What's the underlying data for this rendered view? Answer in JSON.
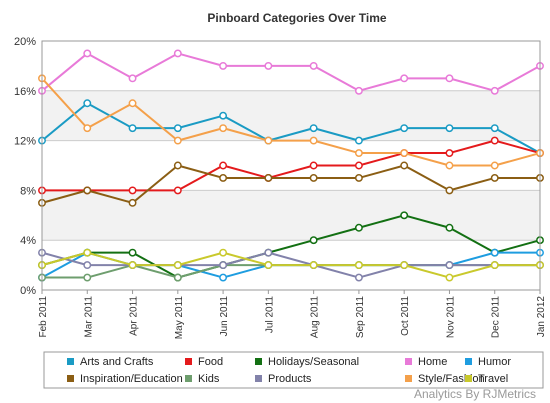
{
  "chart_data": {
    "type": "line",
    "title": "Pinboard Categories Over Time",
    "categories": [
      "Feb 2011",
      "Mar 2011",
      "Apr 2011",
      "May 2011",
      "Jun 2011",
      "Jul 2011",
      "Aug 2011",
      "Sep 2011",
      "Oct 2011",
      "Nov 2011",
      "Dec 2011",
      "Jan 2012"
    ],
    "y_ticks": [
      "0%",
      "4%",
      "8%",
      "12%",
      "16%",
      "20%"
    ],
    "ylim": [
      0,
      20
    ],
    "y_unit": "percent",
    "grid": true,
    "legend_position": "bottom",
    "series": [
      {
        "name": "Arts and Crafts",
        "color": "#1a9bc4",
        "values": [
          12,
          15,
          13,
          13,
          14,
          12,
          13,
          12,
          13,
          13,
          13,
          11
        ]
      },
      {
        "name": "Food",
        "color": "#e41a1c",
        "values": [
          8,
          8,
          8,
          8,
          10,
          9,
          10,
          10,
          11,
          11,
          12,
          11
        ]
      },
      {
        "name": "Holidays/Seasonal",
        "color": "#137013",
        "values": [
          2,
          3,
          3,
          1,
          2,
          3,
          4,
          5,
          6,
          5,
          3,
          4
        ]
      },
      {
        "name": "Home",
        "color": "#e87ad8",
        "values": [
          16,
          19,
          17,
          19,
          18,
          18,
          18,
          16,
          17,
          17,
          16,
          18
        ]
      },
      {
        "name": "Humor",
        "color": "#1e9de0",
        "values": [
          1,
          3,
          2,
          2,
          1,
          2,
          2,
          2,
          2,
          2,
          3,
          3
        ]
      },
      {
        "name": "Inspiration/Education",
        "color": "#8b5e14",
        "values": [
          7,
          8,
          7,
          10,
          9,
          9,
          9,
          9,
          10,
          8,
          9,
          9
        ]
      },
      {
        "name": "Kids",
        "color": "#6e9e6e",
        "values": [
          1,
          1,
          2,
          1,
          2,
          2,
          2,
          2,
          2,
          2,
          2,
          2
        ]
      },
      {
        "name": "Products",
        "color": "#8282aa",
        "values": [
          3,
          2,
          2,
          2,
          2,
          3,
          2,
          1,
          2,
          2,
          2,
          2
        ]
      },
      {
        "name": "Style/Fashion",
        "color": "#f4a04a",
        "values": [
          17,
          13,
          15,
          12,
          13,
          12,
          12,
          11,
          11,
          10,
          10,
          11
        ]
      },
      {
        "name": "Travel",
        "color": "#c9c92c",
        "values": [
          2,
          3,
          2,
          2,
          3,
          2,
          2,
          2,
          2,
          1,
          2,
          2
        ]
      }
    ]
  },
  "watermark": "Analytics By RJMetrics"
}
